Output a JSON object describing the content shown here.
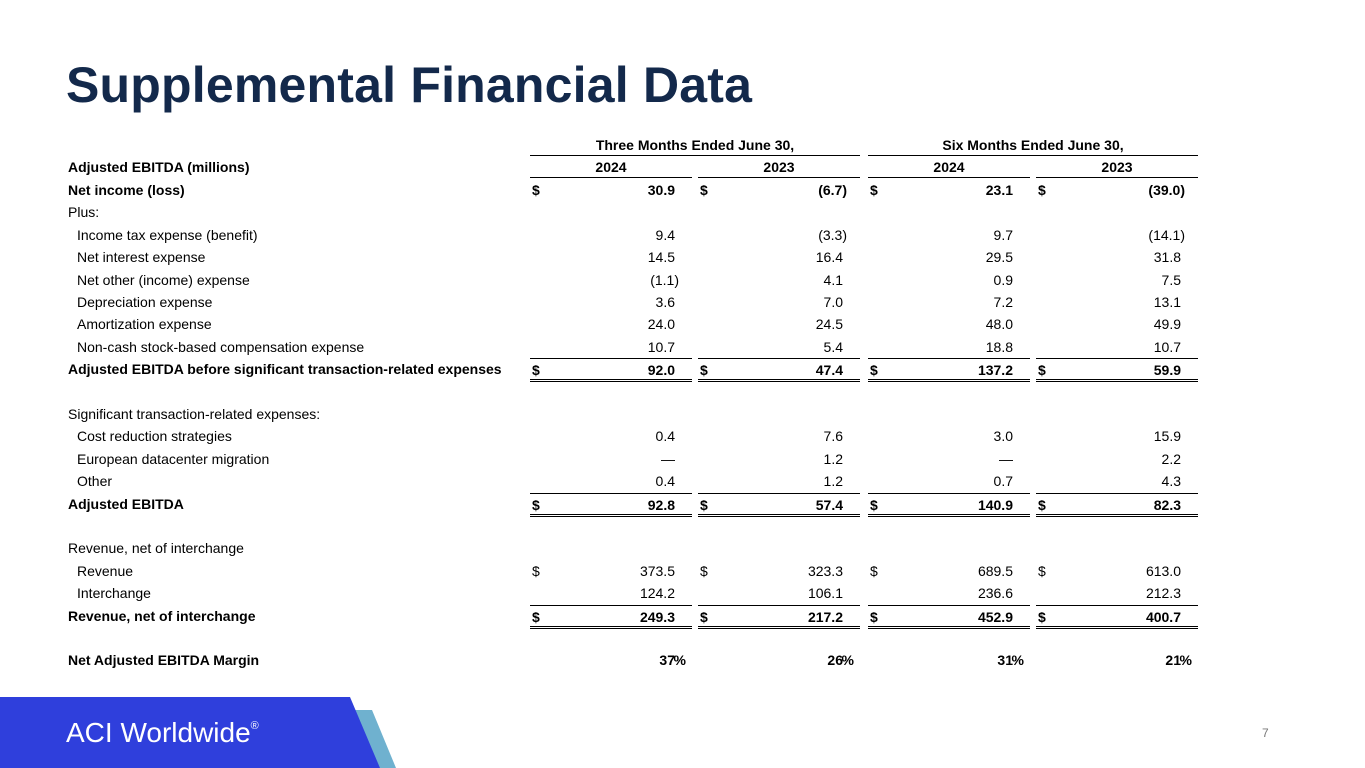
{
  "header": {
    "title": "Supplemental Financial Data"
  },
  "table": {
    "groups": [
      {
        "label": "Three Months Ended June 30,",
        "years": [
          "2024",
          "2023"
        ]
      },
      {
        "label": "Six Months Ended June 30,",
        "years": [
          "2024",
          "2023"
        ]
      }
    ],
    "stub_header": "Adjusted EBITDA (millions)",
    "sections": [
      {
        "rows": [
          {
            "label": "Net income (loss)",
            "bold": true,
            "cells": [
              {
                "currency": "$",
                "value": "30.9"
              },
              {
                "currency": "$",
                "value": "(6.7)"
              },
              {
                "currency": "$",
                "value": "23.1"
              },
              {
                "currency": "$",
                "value": "(39.0)"
              }
            ]
          },
          {
            "label": "Plus:"
          },
          {
            "label": "Income tax expense (benefit)",
            "indent": true,
            "cells": [
              {
                "value": "9.4"
              },
              {
                "value": "(3.3)"
              },
              {
                "value": "9.7"
              },
              {
                "value": "(14.1)"
              }
            ]
          },
          {
            "label": "Net interest expense",
            "indent": true,
            "cells": [
              {
                "value": "14.5"
              },
              {
                "value": "16.4"
              },
              {
                "value": "29.5"
              },
              {
                "value": "31.8"
              }
            ]
          },
          {
            "label": "Net other (income) expense",
            "indent": true,
            "cells": [
              {
                "value": "(1.1)"
              },
              {
                "value": "4.1"
              },
              {
                "value": "0.9"
              },
              {
                "value": "7.5"
              }
            ]
          },
          {
            "label": "Depreciation expense",
            "indent": true,
            "cells": [
              {
                "value": "3.6"
              },
              {
                "value": "7.0"
              },
              {
                "value": "7.2"
              },
              {
                "value": "13.1"
              }
            ]
          },
          {
            "label": "Amortization expense",
            "indent": true,
            "cells": [
              {
                "value": "24.0"
              },
              {
                "value": "24.5"
              },
              {
                "value": "48.0"
              },
              {
                "value": "49.9"
              }
            ]
          },
          {
            "label": "Non-cash stock-based compensation expense",
            "indent": true,
            "cells": [
              {
                "value": "10.7"
              },
              {
                "value": "5.4"
              },
              {
                "value": "18.8"
              },
              {
                "value": "10.7"
              }
            ]
          },
          {
            "label": "Adjusted EBITDA before significant transaction-related expenses",
            "bold": true,
            "total": true,
            "cells": [
              {
                "currency": "$",
                "value": "92.0"
              },
              {
                "currency": "$",
                "value": "47.4"
              },
              {
                "currency": "$",
                "value": "137.2"
              },
              {
                "currency": "$",
                "value": "59.9"
              }
            ]
          }
        ]
      },
      {
        "rows": [
          {
            "label": "Significant transaction-related expenses:"
          },
          {
            "label": "Cost reduction strategies",
            "indent": true,
            "cells": [
              {
                "value": "0.4"
              },
              {
                "value": "7.6"
              },
              {
                "value": "3.0"
              },
              {
                "value": "15.9"
              }
            ]
          },
          {
            "label": "European datacenter migration",
            "indent": true,
            "cells": [
              {
                "value": "—"
              },
              {
                "value": "1.2"
              },
              {
                "value": "—"
              },
              {
                "value": "2.2"
              }
            ]
          },
          {
            "label": "Other",
            "indent": true,
            "cells": [
              {
                "value": "0.4"
              },
              {
                "value": "1.2"
              },
              {
                "value": "0.7"
              },
              {
                "value": "4.3"
              }
            ]
          },
          {
            "label": "Adjusted EBITDA",
            "bold": true,
            "total": true,
            "cells": [
              {
                "currency": "$",
                "value": "92.8"
              },
              {
                "currency": "$",
                "value": "57.4"
              },
              {
                "currency": "$",
                "value": "140.9"
              },
              {
                "currency": "$",
                "value": "82.3"
              }
            ]
          }
        ]
      },
      {
        "rows": [
          {
            "label": "Revenue, net of interchange"
          },
          {
            "label": "Revenue",
            "indent": true,
            "cells": [
              {
                "currency": "$",
                "value": "373.5"
              },
              {
                "currency": "$",
                "value": "323.3"
              },
              {
                "currency": "$",
                "value": "689.5"
              },
              {
                "currency": "$",
                "value": "613.0"
              }
            ]
          },
          {
            "label": "Interchange",
            "indent": true,
            "cells": [
              {
                "value": "124.2"
              },
              {
                "value": "106.1"
              },
              {
                "value": "236.6"
              },
              {
                "value": "212.3"
              }
            ]
          },
          {
            "label": "Revenue, net of interchange",
            "bold": true,
            "total": true,
            "cells": [
              {
                "currency": "$",
                "value": "249.3"
              },
              {
                "currency": "$",
                "value": "217.2"
              },
              {
                "currency": "$",
                "value": "452.9"
              },
              {
                "currency": "$",
                "value": "400.7"
              }
            ]
          }
        ]
      },
      {
        "rows": [
          {
            "label": "Net Adjusted EBITDA Margin",
            "bold": true,
            "cells": [
              {
                "value": "37",
                "unit": "%"
              },
              {
                "value": "26",
                "unit": "%"
              },
              {
                "value": "31",
                "unit": "%"
              },
              {
                "value": "21",
                "unit": "%"
              }
            ]
          }
        ]
      }
    ]
  },
  "footer": {
    "logo": "ACI Worldwide",
    "mark": "®",
    "page": "7"
  }
}
